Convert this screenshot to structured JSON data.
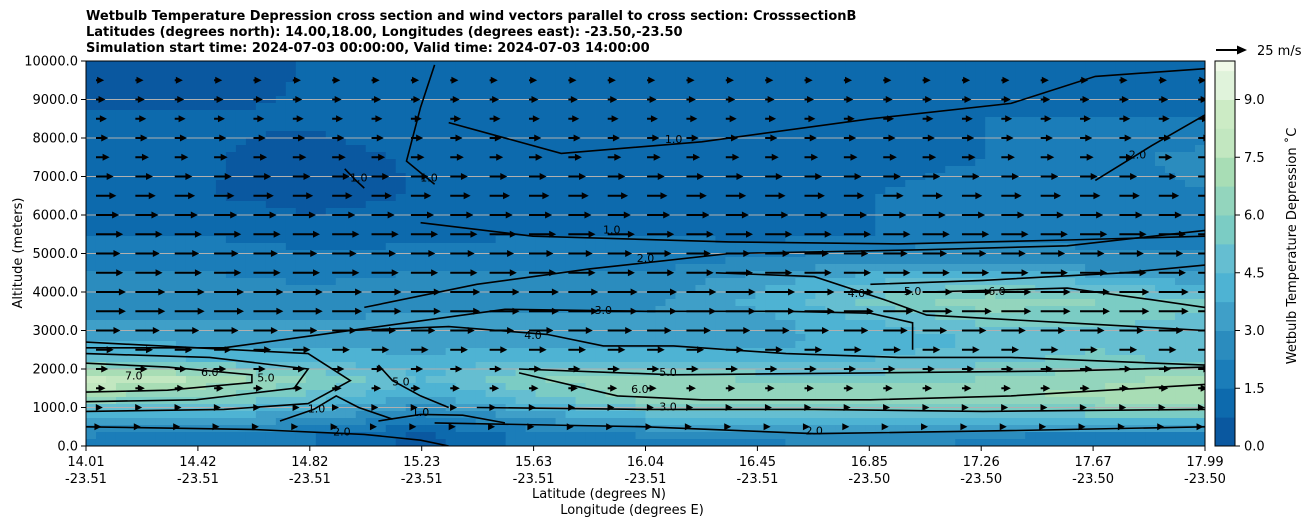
{
  "chart_data": {
    "type": "heatmap",
    "title_lines": [
      "Wetbulb Temperature Depression cross section and wind vectors parallel to cross section: CrosssectionB",
      "Latitudes (degrees north): 14.00,18.00, Longitudes (degrees east): -23.50,-23.50",
      "Simulation start time: 2024-07-03 00:00:00, Valid time: 2024-07-03 14:00:00"
    ],
    "xlabel_lat": "Latitude (degrees N)",
    "xlabel_lon": "Longitude (degrees E)",
    "ylabel": "Altitude (meters)",
    "colorbar_label": "Wetbulb Temperature Depression ˚C",
    "wind_key_label": "25 m/s",
    "x_range": [
      14.01,
      17.99
    ],
    "ylim": [
      0,
      10000
    ],
    "x_ticks": [
      {
        "lat": "14.01",
        "lon": "-23.51"
      },
      {
        "lat": "14.42",
        "lon": "-23.51"
      },
      {
        "lat": "14.82",
        "lon": "-23.51"
      },
      {
        "lat": "15.23",
        "lon": "-23.51"
      },
      {
        "lat": "15.63",
        "lon": "-23.51"
      },
      {
        "lat": "16.04",
        "lon": "-23.51"
      },
      {
        "lat": "16.45",
        "lon": "-23.51"
      },
      {
        "lat": "16.85",
        "lon": "-23.50"
      },
      {
        "lat": "17.26",
        "lon": "-23.50"
      },
      {
        "lat": "17.67",
        "lon": "-23.50"
      },
      {
        "lat": "17.99",
        "lon": "-23.50"
      }
    ],
    "y_ticks": [
      "0.0",
      "1000.0",
      "2000.0",
      "3000.0",
      "4000.0",
      "5000.0",
      "6000.0",
      "7000.0",
      "8000.0",
      "9000.0",
      "10000.0"
    ],
    "colorbar_ticks": [
      "0.0",
      "1.5",
      "3.0",
      "4.5",
      "6.0",
      "7.5",
      "9.0"
    ],
    "colorbar_range": [
      0,
      10
    ],
    "colorbar_levels": [
      0,
      0.75,
      1.5,
      2.25,
      3.0,
      3.75,
      4.5,
      5.25,
      6.0,
      6.75,
      7.5,
      8.25,
      9.0,
      9.75
    ],
    "colorbar_colors": [
      "#084081",
      "#0a58a0",
      "#0d6aad",
      "#1b7db9",
      "#2b8cbe",
      "#3f9fc8",
      "#4eb3d3",
      "#65bed1",
      "#7bccc4",
      "#93d5bd",
      "#a8ddb5",
      "#c2e7c0",
      "#ccebc5",
      "#e0f3db",
      "#f0f9e8"
    ],
    "field_columns_x": [
      14.01,
      14.41,
      14.81,
      15.21,
      15.61,
      16.01,
      16.41,
      16.81,
      17.21,
      17.61,
      17.99
    ],
    "field_rows_y": [
      250,
      750,
      1250,
      1750,
      2250,
      2750,
      3250,
      3750,
      4250,
      4750,
      5500,
      6500,
      7500,
      8500,
      9500
    ],
    "field_values": [
      [
        2.2,
        2.0,
        1.5,
        0.5,
        1.8,
        2.2,
        2.2,
        2.4,
        2.2,
        2.0,
        2.0
      ],
      [
        3.5,
        3.8,
        3.2,
        2.0,
        3.2,
        4.2,
        4.6,
        4.5,
        4.8,
        5.0,
        5.0
      ],
      [
        6.5,
        6.0,
        5.0,
        3.5,
        5.0,
        6.5,
        6.8,
        6.8,
        6.8,
        7.0,
        7.5
      ],
      [
        8.5,
        7.5,
        6.0,
        4.5,
        6.0,
        6.5,
        5.8,
        5.5,
        6.0,
        6.5,
        7.0
      ],
      [
        5.0,
        4.5,
        4.2,
        3.8,
        4.5,
        4.5,
        4.0,
        4.5,
        5.0,
        5.5,
        5.0
      ],
      [
        3.5,
        3.5,
        3.5,
        3.5,
        3.5,
        3.5,
        3.5,
        4.0,
        4.5,
        5.0,
        4.5
      ],
      [
        3.0,
        3.0,
        3.0,
        3.2,
        3.2,
        3.2,
        3.5,
        4.5,
        5.5,
        5.5,
        5.0
      ],
      [
        2.8,
        2.8,
        2.5,
        2.8,
        2.8,
        2.8,
        4.0,
        5.5,
        6.5,
        6.0,
        5.5
      ],
      [
        2.5,
        2.5,
        2.2,
        2.5,
        2.5,
        2.5,
        3.5,
        4.5,
        5.0,
        4.5,
        3.5
      ],
      [
        2.0,
        2.0,
        2.0,
        2.0,
        2.0,
        2.0,
        2.5,
        3.0,
        3.0,
        2.5,
        2.5
      ],
      [
        1.5,
        1.5,
        1.0,
        1.2,
        1.5,
        1.5,
        1.2,
        1.5,
        2.0,
        2.0,
        2.0
      ],
      [
        1.0,
        0.8,
        0.5,
        0.8,
        1.2,
        1.2,
        0.8,
        1.5,
        2.0,
        2.0,
        2.2
      ],
      [
        1.0,
        0.8,
        0.6,
        0.8,
        1.0,
        1.0,
        0.8,
        1.0,
        1.5,
        2.0,
        2.5
      ],
      [
        0.8,
        0.8,
        0.8,
        1.0,
        1.2,
        1.2,
        1.0,
        1.2,
        1.5,
        1.5,
        1.5
      ],
      [
        0.5,
        0.5,
        0.8,
        0.8,
        0.8,
        0.8,
        0.8,
        1.2,
        1.0,
        1.2,
        1.2
      ]
    ],
    "contours": [
      {
        "label": "7.0",
        "label_at": [
          14.18,
          1750
        ],
        "points": [
          [
            14.01,
            1400
          ],
          [
            14.3,
            1450
          ],
          [
            14.6,
            1650
          ],
          [
            14.6,
            1850
          ],
          [
            14.3,
            2050
          ],
          [
            14.01,
            2150
          ]
        ]
      },
      {
        "label": "6.0",
        "label_at": [
          14.45,
          1850
        ],
        "points": [
          [
            14.01,
            1150
          ],
          [
            14.4,
            1200
          ],
          [
            14.75,
            1500
          ],
          [
            14.8,
            2000
          ],
          [
            14.45,
            2300
          ],
          [
            14.01,
            2400
          ]
        ]
      },
      {
        "label": "5.0",
        "label_at": [
          14.65,
          1700
        ],
        "points": [
          [
            14.01,
            900
          ],
          [
            14.5,
            950
          ],
          [
            14.8,
            1100
          ],
          [
            14.95,
            1700
          ],
          [
            14.8,
            2400
          ],
          [
            14.01,
            2700
          ]
        ]
      },
      {
        "label": "1.0",
        "label_at": [
          14.83,
          900
        ],
        "points": [
          [
            14.7,
            650
          ],
          [
            14.82,
            950
          ],
          [
            14.9,
            1300
          ],
          [
            14.98,
            1000
          ],
          [
            15.1,
            700
          ]
        ]
      },
      {
        "label": "2.0",
        "label_at": [
          14.92,
          300
        ],
        "points": [
          [
            14.01,
            500
          ],
          [
            14.6,
            430
          ],
          [
            15.0,
            300
          ],
          [
            15.2,
            150
          ],
          [
            15.3,
            0
          ]
        ]
      },
      {
        "label": "5.0",
        "label_at": [
          15.13,
          1600
        ],
        "points": [
          [
            15.05,
            2100
          ],
          [
            15.1,
            1700
          ],
          [
            15.2,
            1300
          ],
          [
            15.3,
            1000
          ]
        ]
      },
      {
        "label": "1.0",
        "label_at": [
          15.2,
          800
        ],
        "points": [
          [
            15.05,
            650
          ],
          [
            15.2,
            820
          ],
          [
            15.35,
            800
          ],
          [
            15.5,
            600
          ]
        ]
      },
      {
        "label": "4.0",
        "label_at": [
          15.6,
          2800
        ],
        "points": [
          [
            14.95,
            3000
          ],
          [
            15.3,
            3100
          ],
          [
            15.65,
            2900
          ],
          [
            15.85,
            2600
          ],
          [
            16.1,
            2600
          ],
          [
            16.5,
            2400
          ],
          [
            16.9,
            2300
          ],
          [
            17.3,
            2300
          ],
          [
            17.99,
            2100
          ]
        ]
      },
      {
        "label": "3.0",
        "label_at": [
          15.85,
          3450
        ],
        "points": [
          [
            14.01,
            2550
          ],
          [
            14.5,
            2550
          ],
          [
            15.0,
            3050
          ],
          [
            15.5,
            3550
          ],
          [
            16.0,
            3500
          ],
          [
            16.5,
            3500
          ],
          [
            16.8,
            3450
          ],
          [
            16.95,
            3200
          ],
          [
            16.95,
            2500
          ]
        ]
      },
      {
        "label": "2.0",
        "label_at": [
          16.0,
          4800
        ],
        "points": [
          [
            15.0,
            3600
          ],
          [
            15.4,
            4200
          ],
          [
            15.8,
            4600
          ],
          [
            16.3,
            5000
          ],
          [
            17.0,
            5100
          ],
          [
            17.5,
            5200
          ],
          [
            17.99,
            5600
          ]
        ]
      },
      {
        "label": "1.0",
        "label_at": [
          15.88,
          5550
        ],
        "points": [
          [
            15.2,
            5800
          ],
          [
            15.6,
            5450
          ],
          [
            16.3,
            5300
          ],
          [
            16.9,
            5250
          ],
          [
            17.5,
            5350
          ],
          [
            17.99,
            5450
          ]
        ]
      },
      {
        "label": "4.0",
        "label_at": [
          16.75,
          3900
        ],
        "points": [
          [
            16.25,
            4500
          ],
          [
            16.6,
            4400
          ],
          [
            16.85,
            3800
          ],
          [
            17.0,
            3400
          ],
          [
            17.5,
            3200
          ],
          [
            17.99,
            3000
          ]
        ]
      },
      {
        "label": "5.0",
        "label_at": [
          16.95,
          3950
        ],
        "points": [
          [
            16.8,
            4200
          ],
          [
            17.2,
            4300
          ],
          [
            17.7,
            4500
          ],
          [
            17.99,
            4700
          ]
        ]
      },
      {
        "label": "6.0",
        "label_at": [
          17.25,
          3950
        ],
        "points": [
          [
            17.0,
            4000
          ],
          [
            17.5,
            4100
          ],
          [
            17.8,
            3800
          ],
          [
            17.99,
            3600
          ]
        ]
      },
      {
        "label": "6.0",
        "label_at": [
          15.98,
          1400
        ],
        "points": [
          [
            15.55,
            1900
          ],
          [
            15.9,
            1300
          ],
          [
            16.2,
            1200
          ],
          [
            16.8,
            1200
          ],
          [
            17.3,
            1300
          ],
          [
            17.99,
            1600
          ]
        ]
      },
      {
        "label": "5.0",
        "label_at": [
          16.08,
          1850
        ],
        "points": [
          [
            15.55,
            2000
          ],
          [
            16.1,
            1850
          ],
          [
            16.8,
            1900
          ],
          [
            17.5,
            1950
          ],
          [
            17.99,
            2050
          ]
        ]
      },
      {
        "label": "3.0",
        "label_at": [
          16.08,
          950
        ],
        "points": [
          [
            15.4,
            1000
          ],
          [
            16.0,
            950
          ],
          [
            16.6,
            950
          ],
          [
            17.2,
            900
          ],
          [
            17.99,
            950
          ]
        ]
      },
      {
        "label": "2.0",
        "label_at": [
          16.6,
          320
        ],
        "points": [
          [
            15.25,
            600
          ],
          [
            16.0,
            500
          ],
          [
            16.6,
            320
          ],
          [
            17.3,
            400
          ],
          [
            17.99,
            500
          ]
        ]
      },
      {
        "label": "1.0",
        "label_at": [
          16.1,
          7900
        ],
        "points": [
          [
            15.3,
            8400
          ],
          [
            15.7,
            7600
          ],
          [
            16.2,
            7900
          ],
          [
            16.8,
            8500
          ],
          [
            17.3,
            8900
          ],
          [
            17.6,
            9600
          ],
          [
            17.99,
            9800
          ]
        ]
      },
      {
        "label": "2.0",
        "label_at": [
          17.75,
          7500
        ],
        "points": [
          [
            17.6,
            6900
          ],
          [
            17.8,
            7800
          ],
          [
            17.99,
            8600
          ]
        ]
      },
      {
        "label": "1.0",
        "label_at": [
          15.23,
          6900
        ],
        "points": [
          [
            15.25,
            9900
          ],
          [
            15.2,
            8800
          ],
          [
            15.15,
            7400
          ],
          [
            15.25,
            6800
          ]
        ]
      },
      {
        "label": "1.0",
        "label_at": [
          14.98,
          6900
        ],
        "points": [
          [
            14.93,
            7200
          ],
          [
            14.97,
            6900
          ],
          [
            15.0,
            6700
          ]
        ]
      }
    ],
    "wind_vectors": {
      "columns_x": [
        14.01,
        14.15,
        14.29,
        14.43,
        14.57,
        14.71,
        14.85,
        14.99,
        15.13,
        15.27,
        15.41,
        15.55,
        15.69,
        15.83,
        15.97,
        16.11,
        16.25,
        16.39,
        16.53,
        16.67,
        16.81,
        16.95,
        17.09,
        17.23,
        17.37,
        17.51,
        17.65,
        17.79,
        17.93
      ],
      "rows_y": [
        500,
        1000,
        1500,
        2000,
        2500,
        3000,
        3500,
        4000,
        4500,
        5000,
        5500,
        6000,
        6500,
        7000,
        7500,
        8000,
        8500,
        9000,
        9500
      ],
      "row_speed_ms": [
        4,
        5,
        7,
        9,
        13,
        18,
        22,
        22,
        20,
        18,
        20,
        17,
        15,
        13,
        10,
        9,
        8,
        7,
        6
      ],
      "reference_speed_ms": 25
    }
  }
}
